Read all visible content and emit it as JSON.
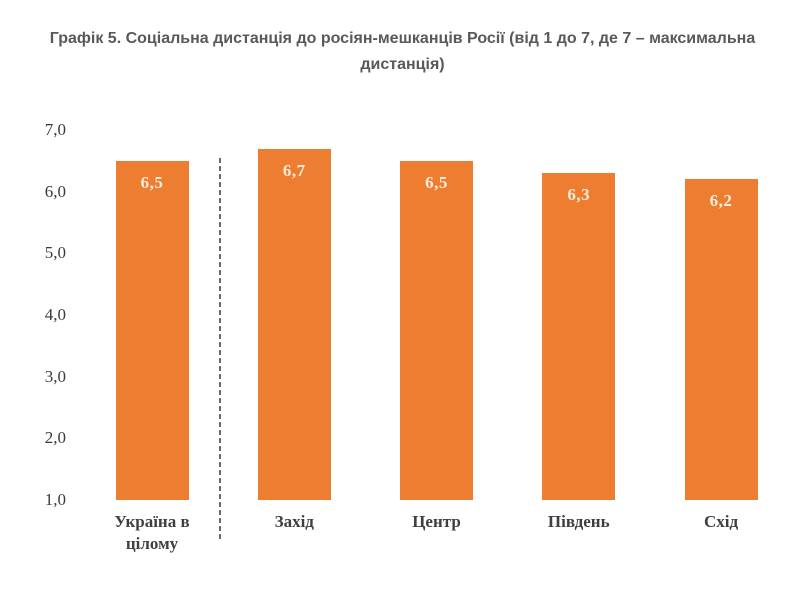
{
  "page": {
    "background": "#FFFFFF"
  },
  "chart_data": {
    "type": "bar",
    "title": "Графік 5. Соціальна дистанція до росіян-мешканців Росії (від 1 до 7, де 7 – максимальна дистанція)",
    "title_lines": [
      "Графік 5. Соціальна дистанція до росіян-мешканців Росії (від 1 до 7, де 7 – максимальна",
      "дистанція)"
    ],
    "categories": [
      "Україна в цілому",
      "Захід",
      "Центр",
      "Південь",
      "Схід"
    ],
    "values": [
      6.5,
      6.7,
      6.5,
      6.3,
      6.2
    ],
    "value_labels": [
      "6,5",
      "6,7",
      "6,5",
      "6,3",
      "6,2"
    ],
    "y_ticks": [
      "7,0",
      "6,0",
      "5,0",
      "4,0",
      "3,0",
      "2,0",
      "1,0"
    ],
    "y_tick_values": [
      7.0,
      6.0,
      5.0,
      4.0,
      3.0,
      2.0,
      1.0
    ],
    "ylim": [
      1.0,
      7.0
    ],
    "xlabel": "",
    "ylabel": "",
    "grid": false,
    "legend": false,
    "separator_after_first_bar": true,
    "colors": {
      "bar": "#ED7D31",
      "value_label": "#F7EFDC",
      "axis_text": "#3A3A3A",
      "category_text": "#3F3F3F",
      "title_text": "#595959",
      "separator": "#6B6B6B"
    }
  }
}
